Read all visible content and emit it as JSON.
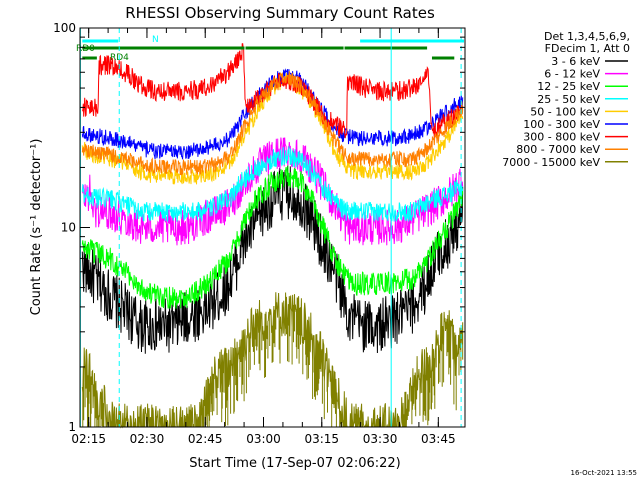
{
  "chart_data": {
    "type": "line",
    "title": "RHESSI Observing Summary Count Rates",
    "xlabel": "Start Time (17-Sep-07 02:06:22)",
    "ylabel": "Count Rate (s⁻¹ detector⁻¹)",
    "yscale": "log",
    "ylim": [
      1,
      100
    ],
    "xlim_minutes": [
      6.4,
      105.5
    ],
    "x_tick_labels": [
      "02:15",
      "02:30",
      "02:45",
      "03:00",
      "03:15",
      "03:30",
      "03:45"
    ],
    "y_tick_labels": [
      "1",
      "10",
      "100"
    ],
    "legend_header": [
      "Det 1,3,4,5,6,9,",
      "FDecim 1, Att 0"
    ],
    "legend_position": "right",
    "timestamp": "16-Oct-2021 13:55",
    "series": [
      {
        "name": "3 - 6 keV",
        "color": "#000000",
        "points": [
          [
            7,
            6.5
          ],
          [
            12,
            5
          ],
          [
            17,
            4
          ],
          [
            22,
            3.2
          ],
          [
            26,
            3.2
          ],
          [
            30,
            3.2
          ],
          [
            34,
            3.5
          ],
          [
            40,
            4
          ],
          [
            44,
            5
          ],
          [
            46,
            6
          ],
          [
            48,
            8
          ],
          [
            52,
            11
          ],
          [
            56,
            14
          ],
          [
            60,
            15
          ],
          [
            63,
            14
          ],
          [
            66,
            11
          ],
          [
            69,
            8
          ],
          [
            72,
            6
          ],
          [
            74,
            4.5
          ],
          [
            76,
            3.5
          ],
          [
            80,
            3.2
          ],
          [
            84,
            3.2
          ],
          [
            88,
            3.5
          ],
          [
            92,
            4
          ],
          [
            95,
            5
          ],
          [
            98,
            7
          ],
          [
            102,
            9
          ],
          [
            105,
            12
          ]
        ]
      },
      {
        "name": "6 - 12 keV",
        "color": "#ff00ff",
        "points": [
          [
            7,
            14
          ],
          [
            9,
            15
          ],
          [
            10,
            12
          ],
          [
            14,
            12
          ],
          [
            18,
            11
          ],
          [
            22,
            10
          ],
          [
            26,
            10
          ],
          [
            30,
            10
          ],
          [
            34,
            10
          ],
          [
            38,
            11
          ],
          [
            42,
            12
          ],
          [
            45,
            13
          ],
          [
            48,
            16
          ],
          [
            52,
            20
          ],
          [
            56,
            23
          ],
          [
            60,
            24
          ],
          [
            63,
            23
          ],
          [
            66,
            20
          ],
          [
            70,
            15
          ],
          [
            73,
            12
          ],
          [
            75,
            10
          ],
          [
            80,
            10
          ],
          [
            84,
            10
          ],
          [
            88,
            10
          ],
          [
            92,
            11
          ],
          [
            95,
            12
          ],
          [
            98,
            13
          ],
          [
            102,
            15
          ],
          [
            105,
            18
          ]
        ]
      },
      {
        "name": "12 - 25 keV",
        "color": "#00ff00",
        "points": [
          [
            7,
            8
          ],
          [
            10,
            7.5
          ],
          [
            14,
            7
          ],
          [
            18,
            6
          ],
          [
            22,
            5
          ],
          [
            26,
            4.5
          ],
          [
            30,
            4.5
          ],
          [
            34,
            4.5
          ],
          [
            38,
            5
          ],
          [
            42,
            6
          ],
          [
            45,
            7
          ],
          [
            48,
            10
          ],
          [
            52,
            14
          ],
          [
            56,
            17
          ],
          [
            60,
            18
          ],
          [
            63,
            17
          ],
          [
            66,
            14
          ],
          [
            69,
            10
          ],
          [
            72,
            7
          ],
          [
            74,
            6
          ],
          [
            76,
            5.2
          ],
          [
            80,
            5.2
          ],
          [
            84,
            5.2
          ],
          [
            88,
            5.3
          ],
          [
            92,
            5.5
          ],
          [
            95,
            6.5
          ],
          [
            98,
            8
          ],
          [
            102,
            11
          ],
          [
            105,
            14
          ]
        ]
      },
      {
        "name": "25 - 50 keV",
        "color": "#00ffff",
        "points": [
          [
            7,
            15
          ],
          [
            10,
            14
          ],
          [
            14,
            14
          ],
          [
            18,
            13
          ],
          [
            22,
            12
          ],
          [
            26,
            12
          ],
          [
            30,
            12
          ],
          [
            34,
            12
          ],
          [
            38,
            12
          ],
          [
            42,
            13
          ],
          [
            45,
            14
          ],
          [
            48,
            17
          ],
          [
            52,
            20
          ],
          [
            56,
            22
          ],
          [
            60,
            23
          ],
          [
            63,
            22
          ],
          [
            66,
            19
          ],
          [
            70,
            15
          ],
          [
            73,
            13
          ],
          [
            75,
            12
          ],
          [
            80,
            12
          ],
          [
            84,
            12
          ],
          [
            88,
            12
          ],
          [
            92,
            12
          ],
          [
            95,
            13
          ],
          [
            98,
            14
          ],
          [
            102,
            15
          ],
          [
            105,
            16
          ]
        ]
      },
      {
        "name": "50 - 100 keV",
        "color": "#ffcc00",
        "points": [
          [
            7,
            26
          ],
          [
            8,
            24
          ],
          [
            10,
            23
          ],
          [
            14,
            22
          ],
          [
            18,
            21
          ],
          [
            22,
            19
          ],
          [
            26,
            18
          ],
          [
            30,
            18
          ],
          [
            34,
            18
          ],
          [
            38,
            18
          ],
          [
            42,
            19
          ],
          [
            45,
            21
          ],
          [
            48,
            27
          ],
          [
            52,
            38
          ],
          [
            56,
            50
          ],
          [
            60,
            55
          ],
          [
            63,
            50
          ],
          [
            66,
            42
          ],
          [
            69,
            32
          ],
          [
            72,
            24
          ],
          [
            74,
            21
          ],
          [
            77,
            19
          ],
          [
            80,
            19
          ],
          [
            84,
            19
          ],
          [
            88,
            19
          ],
          [
            92,
            19
          ],
          [
            95,
            20
          ],
          [
            98,
            24
          ],
          [
            102,
            30
          ],
          [
            105,
            38
          ]
        ]
      },
      {
        "name": "100 - 300 keV",
        "color": "#0000ff",
        "points": [
          [
            7,
            30
          ],
          [
            10,
            29
          ],
          [
            14,
            28
          ],
          [
            18,
            27
          ],
          [
            22,
            25
          ],
          [
            26,
            24
          ],
          [
            30,
            24
          ],
          [
            34,
            24
          ],
          [
            38,
            25
          ],
          [
            42,
            26
          ],
          [
            45,
            28
          ],
          [
            48,
            35
          ],
          [
            52,
            45
          ],
          [
            56,
            55
          ],
          [
            60,
            58
          ],
          [
            63,
            55
          ],
          [
            66,
            47
          ],
          [
            69,
            38
          ],
          [
            72,
            32
          ],
          [
            74,
            29
          ],
          [
            77,
            28
          ],
          [
            80,
            28
          ],
          [
            84,
            28
          ],
          [
            88,
            28
          ],
          [
            92,
            29
          ],
          [
            95,
            31
          ],
          [
            98,
            35
          ],
          [
            102,
            40
          ],
          [
            105,
            44
          ]
        ]
      },
      {
        "name": "300 - 800 keV",
        "color": "#ff0000",
        "points": [
          [
            7,
            40
          ],
          [
            11,
            40
          ],
          [
            11.3,
            65
          ],
          [
            14,
            65
          ],
          [
            18,
            60
          ],
          [
            22,
            52
          ],
          [
            26,
            48
          ],
          [
            30,
            48
          ],
          [
            34,
            48
          ],
          [
            38,
            50
          ],
          [
            42,
            55
          ],
          [
            45,
            62
          ],
          [
            47,
            70
          ],
          [
            48.5,
            77
          ],
          [
            49,
            40
          ],
          [
            52,
            44
          ],
          [
            56,
            52
          ],
          [
            60,
            55
          ],
          [
            63,
            52
          ],
          [
            66,
            44
          ],
          [
            69,
            36
          ],
          [
            73,
            32
          ],
          [
            75,
            30
          ],
          [
            75.3,
            54
          ],
          [
            80,
            50
          ],
          [
            84,
            48
          ],
          [
            88,
            48
          ],
          [
            92,
            50
          ],
          [
            95,
            56
          ],
          [
            96,
            62
          ],
          [
            97,
            30
          ],
          [
            100,
            33
          ],
          [
            103,
            36
          ],
          [
            105,
            40
          ]
        ]
      },
      {
        "name": "800 - 7000 keV",
        "color": "#ff8000",
        "points": [
          [
            7,
            25
          ],
          [
            10,
            24
          ],
          [
            14,
            23
          ],
          [
            18,
            22
          ],
          [
            22,
            21
          ],
          [
            26,
            20
          ],
          [
            30,
            20
          ],
          [
            34,
            20
          ],
          [
            38,
            20
          ],
          [
            42,
            21
          ],
          [
            45,
            23
          ],
          [
            48,
            30
          ],
          [
            52,
            42
          ],
          [
            56,
            52
          ],
          [
            60,
            56
          ],
          [
            63,
            52
          ],
          [
            66,
            44
          ],
          [
            69,
            35
          ],
          [
            72,
            27
          ],
          [
            74,
            24
          ],
          [
            77,
            22
          ],
          [
            80,
            22
          ],
          [
            84,
            22
          ],
          [
            88,
            22
          ],
          [
            92,
            22
          ],
          [
            95,
            24
          ],
          [
            98,
            28
          ],
          [
            102,
            34
          ],
          [
            105,
            40
          ]
        ]
      },
      {
        "name": "7000 - 15000 keV",
        "color": "#808000",
        "points": [
          [
            7,
            1.9
          ],
          [
            9,
            1.9
          ],
          [
            10,
            1.5
          ],
          [
            13,
            1.2
          ],
          [
            15,
            1
          ],
          [
            37,
            1
          ],
          [
            38,
            1.2
          ],
          [
            40,
            1.5
          ],
          [
            41,
            1.8
          ],
          [
            43,
            1.9
          ],
          [
            45,
            2
          ],
          [
            46,
            2.3
          ],
          [
            48,
            2.5
          ],
          [
            50,
            3
          ],
          [
            52,
            3.3
          ],
          [
            56,
            3.7
          ],
          [
            60,
            3.7
          ],
          [
            63,
            3.5
          ],
          [
            66,
            2.8
          ],
          [
            68,
            2.4
          ],
          [
            70,
            2
          ],
          [
            72,
            1.5
          ],
          [
            74,
            1.2
          ],
          [
            76,
            1
          ],
          [
            88,
            1
          ],
          [
            90,
            1.2
          ],
          [
            92,
            1.5
          ],
          [
            94,
            1.9
          ],
          [
            96,
            2
          ],
          [
            98,
            2.5
          ],
          [
            100,
            3
          ],
          [
            102,
            3
          ],
          [
            103,
            2.2
          ],
          [
            105,
            3
          ]
        ]
      }
    ],
    "annotations": [
      {
        "text": "RD0",
        "color": "#008000"
      },
      {
        "text": "RD4",
        "color": "#008000"
      },
      {
        "text": "N",
        "color": "#00ffff"
      }
    ],
    "status_bars": {
      "night": {
        "color": "#00ffff",
        "ranges": [
          [
            7,
            16.5
          ],
          [
            78.5,
            105.5
          ]
        ]
      },
      "rd0": {
        "color": "#008000",
        "ranges": [
          [
            7,
            49
          ],
          [
            49,
            74.5
          ],
          [
            74.5,
            96
          ]
        ]
      },
      "rd4": {
        "color": "#008000",
        "ranges": [
          [
            7,
            11
          ],
          [
            97,
            103
          ]
        ]
      }
    },
    "markers": {
      "solid_cyan": [
        6.5,
        86.5
      ],
      "dashed_cyan": [
        16.5,
        104.5
      ]
    }
  }
}
